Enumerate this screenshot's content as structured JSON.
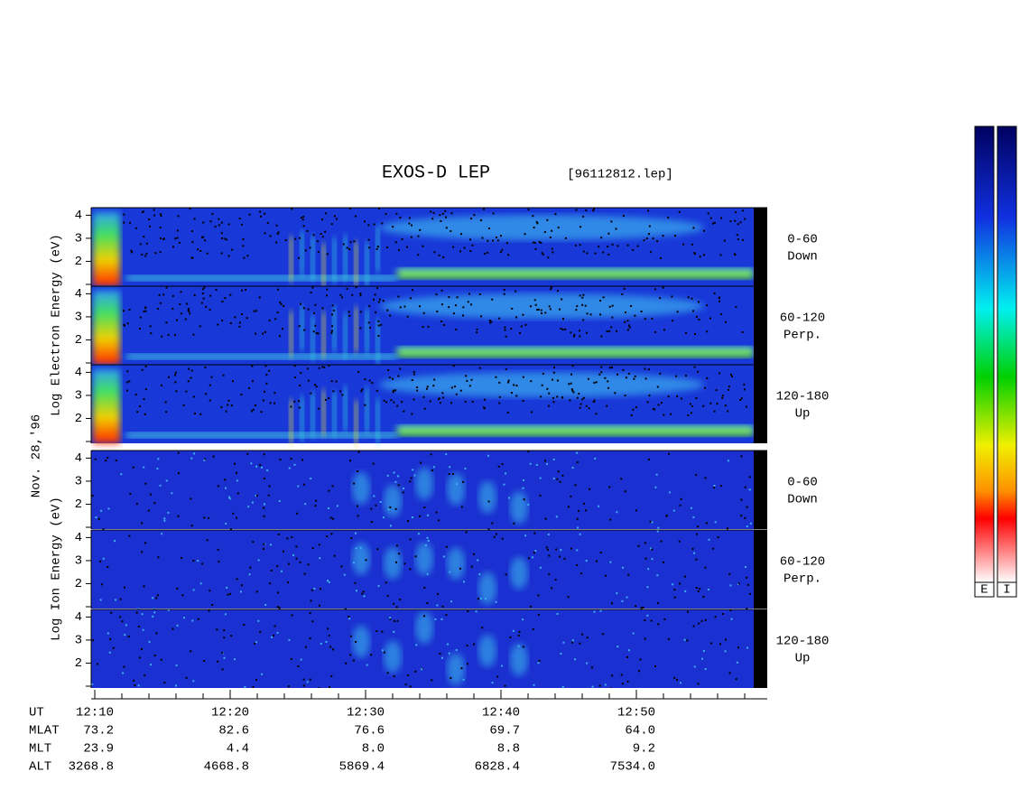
{
  "title": "EXOS-D LEP",
  "file": "[96112812.lep]",
  "panels": [
    [
      "0-60",
      "Down"
    ],
    [
      "60-120",
      "Perp."
    ],
    [
      "120-180",
      "Up"
    ],
    [
      "0-60",
      "Down"
    ],
    [
      "60-120",
      "Perp."
    ],
    [
      "120-180",
      "Up"
    ]
  ],
  "electron_axis": "Log Electron Energy (eV)",
  "ion_axis": "Log Ion Energy (eV)",
  "date": "Nov. 28,'96",
  "ylim": [
    1,
    4.25
  ],
  "yticks": [
    2,
    3,
    4
  ],
  "xticks": [
    "12:10",
    "12:20",
    "12:30",
    "12:40",
    "12:50"
  ],
  "ephemeris_labels": [
    "UT",
    "MLAT",
    "MLT",
    "ALT"
  ],
  "ephemeris": [
    [
      "73.2",
      "82.6",
      "76.6",
      "69.7",
      "64.0"
    ],
    [
      "23.9",
      "4.4",
      "8.0",
      "8.8",
      "9.2"
    ],
    [
      "3268.8",
      "4668.8",
      "5869.4",
      "6828.4",
      "7534.0"
    ]
  ],
  "colorbars": [
    "E",
    "I"
  ]
}
